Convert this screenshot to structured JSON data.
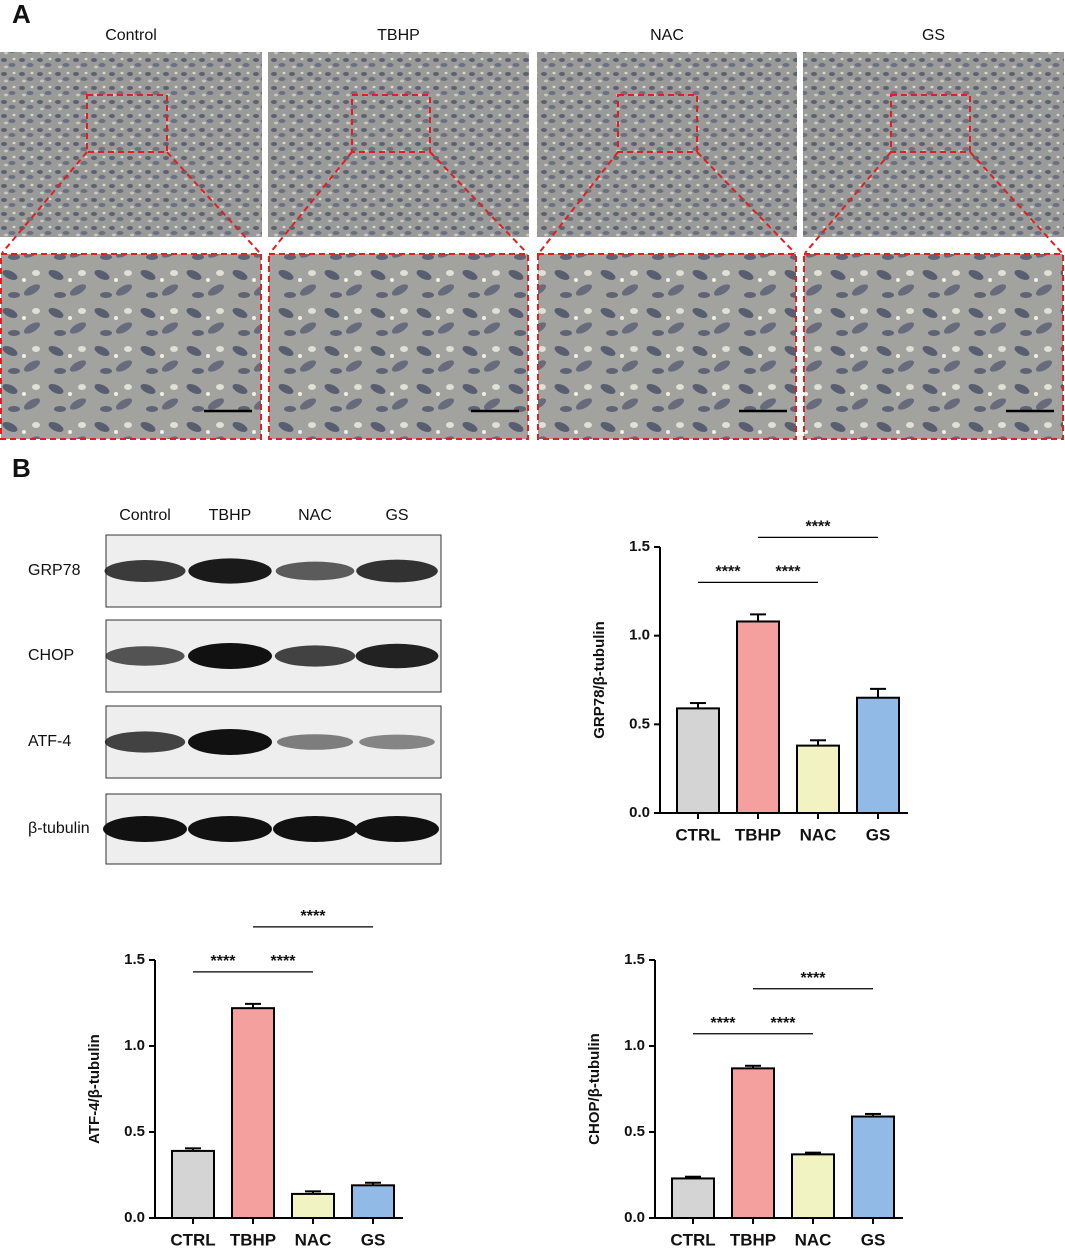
{
  "panel_a": {
    "label": "A",
    "groups": [
      "Control",
      "TBHP",
      "NAC",
      "GS"
    ]
  },
  "panel_b": {
    "label": "B",
    "blot": {
      "lanes": [
        "Control",
        "TBHP",
        "NAC",
        "GS"
      ],
      "proteins": [
        "GRP78",
        "CHOP",
        "ATF-4",
        "β-tubulin"
      ]
    }
  },
  "chart_data": [
    {
      "type": "bar",
      "ylabel": "GRP78/β-tubulin",
      "categories": [
        "CTRL",
        "TBHP",
        "NAC",
        "GS"
      ],
      "values": [
        0.59,
        1.08,
        0.38,
        0.65
      ],
      "errors": [
        0.03,
        0.04,
        0.03,
        0.05
      ],
      "colors": [
        "#d4d4d4",
        "#f4a09f",
        "#f1f4c2",
        "#92bae6"
      ],
      "ylim": [
        0,
        1.5
      ],
      "yticks": [
        {
          "value": 0,
          "label": "0.0"
        },
        0.5,
        {
          "value": 1,
          "label": "1.0"
        },
        1.5
      ],
      "annotations": [
        {
          "text": "****",
          "between": [
            "CTRL",
            "TBHP"
          ]
        },
        {
          "text": "****",
          "between": [
            "TBHP",
            "NAC"
          ]
        },
        {
          "text": "****",
          "between": [
            "TBHP",
            "GS"
          ]
        }
      ]
    },
    {
      "type": "bar",
      "ylabel": "ATF-4/β-tubulin",
      "categories": [
        "CTRL",
        "TBHP",
        "NAC",
        "GS"
      ],
      "values": [
        0.39,
        1.22,
        0.14,
        0.19
      ],
      "errors": [
        0.015,
        0.025,
        0.015,
        0.015
      ],
      "colors": [
        "#d4d4d4",
        "#f4a09f",
        "#f1f4c2",
        "#92bae6"
      ],
      "ylim": [
        0,
        1.5
      ],
      "yticks": [
        {
          "value": 0,
          "label": "0.0"
        },
        0.5,
        {
          "value": 1,
          "label": "1.0"
        },
        1.5
      ],
      "annotations": [
        {
          "text": "****",
          "between": [
            "CTRL",
            "TBHP"
          ]
        },
        {
          "text": "****",
          "between": [
            "TBHP",
            "NAC"
          ]
        },
        {
          "text": "****",
          "between": [
            "TBHP",
            "GS"
          ]
        }
      ]
    },
    {
      "type": "bar",
      "ylabel": "CHOP/β-tubulin",
      "categories": [
        "CTRL",
        "TBHP",
        "NAC",
        "GS"
      ],
      "values": [
        0.23,
        0.87,
        0.37,
        0.59
      ],
      "errors": [
        0.01,
        0.015,
        0.01,
        0.015
      ],
      "colors": [
        "#d4d4d4",
        "#f4a09f",
        "#f1f4c2",
        "#92bae6"
      ],
      "ylim": [
        0,
        1.5
      ],
      "yticks": [
        {
          "value": 0,
          "label": "0.0"
        },
        0.5,
        {
          "value": 1,
          "label": "1.0"
        },
        1.5
      ],
      "annotations": [
        {
          "text": "****",
          "between": [
            "CTRL",
            "TBHP"
          ]
        },
        {
          "text": "****",
          "between": [
            "TBHP",
            "NAC"
          ]
        },
        {
          "text": "****",
          "between": [
            "TBHP",
            "GS"
          ]
        }
      ]
    }
  ]
}
